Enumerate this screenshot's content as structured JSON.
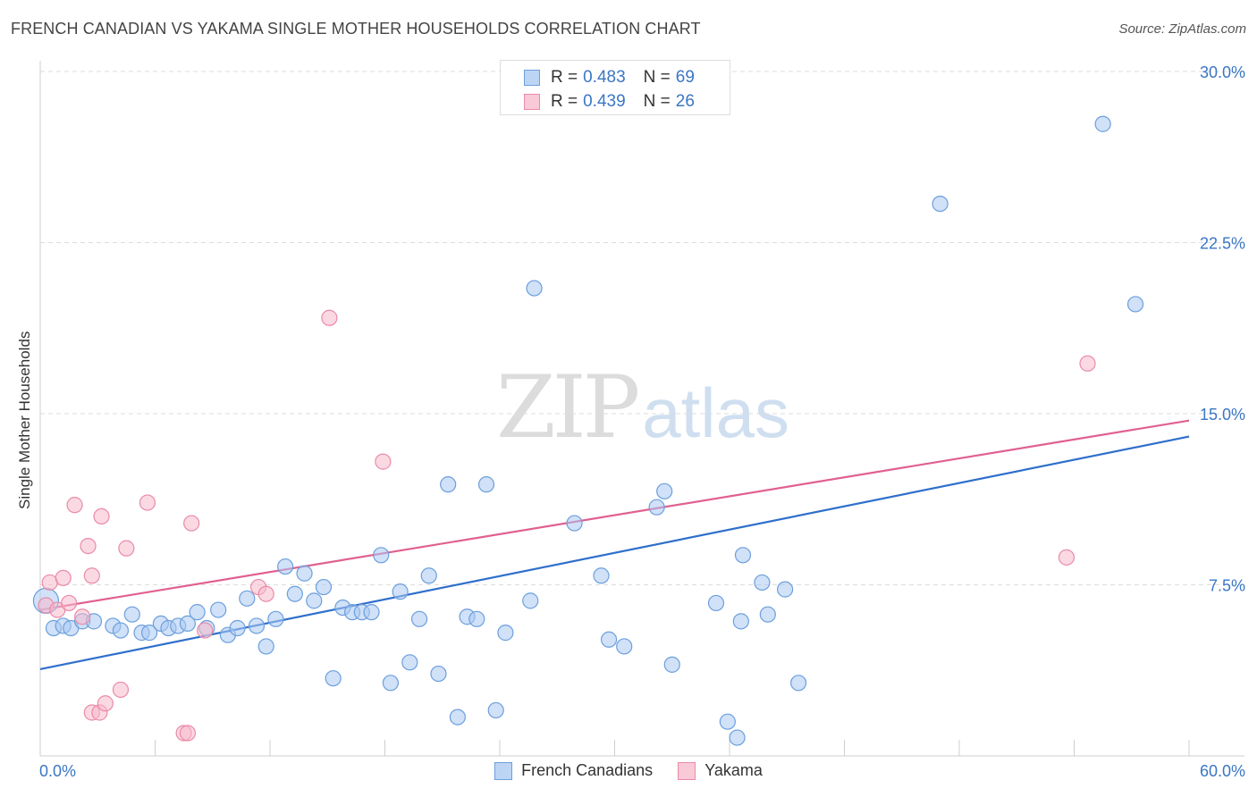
{
  "header": {
    "title": "FRENCH CANADIAN VS YAKAMA SINGLE MOTHER HOUSEHOLDS CORRELATION CHART",
    "source": "Source: ZipAtlas.com"
  },
  "watermark": {
    "zip": "ZIP",
    "atlas": "atlas"
  },
  "legend_top": {
    "rows": [
      {
        "r_label": "R =",
        "r_value": "0.483",
        "n_label": "N =",
        "n_value": "69"
      },
      {
        "r_label": "R =",
        "r_value": "0.439",
        "n_label": "N =",
        "n_value": "26"
      }
    ]
  },
  "legend_bottom": {
    "items": [
      {
        "label": "French Canadians"
      },
      {
        "label": "Yakama"
      }
    ]
  },
  "colors": {
    "blue_fill": "#a9c9f2",
    "blue_stroke": "#6c9fdc",
    "blue_line": "#2f6fcb",
    "pink_fill": "#f7b9cc",
    "pink_stroke": "#ea8aa9",
    "pink_line": "#e06090",
    "grid": "#dddddd",
    "axis_text": "#3a76c4"
  },
  "chart_data": {
    "type": "scatter",
    "title": "FRENCH CANADIAN VS YAKAMA SINGLE MOTHER HOUSEHOLDS CORRELATION CHART",
    "xlabel": "",
    "ylabel": "Single Mother Households",
    "xlim": [
      0,
      60
    ],
    "ylim": [
      0,
      30
    ],
    "x_tick_labels": [
      "0.0%",
      "60.0%"
    ],
    "y_ticks": [
      7.5,
      15,
      22.5,
      30
    ],
    "y_tick_labels": [
      "7.5%",
      "15.0%",
      "22.5%",
      "30.0%"
    ],
    "grid": true,
    "legend_position": "bottom",
    "series": [
      {
        "name": "French Canadians",
        "r": 0.483,
        "n": 69,
        "trend": {
          "x": [
            0,
            60
          ],
          "y": [
            3.8,
            14.0
          ]
        },
        "points": [
          [
            0.3,
            6.8
          ],
          [
            0.7,
            5.6
          ],
          [
            1.2,
            5.7
          ],
          [
            1.6,
            5.6
          ],
          [
            2.2,
            5.9
          ],
          [
            2.8,
            5.9
          ],
          [
            3.8,
            5.7
          ],
          [
            4.2,
            5.5
          ],
          [
            4.8,
            6.2
          ],
          [
            5.3,
            5.4
          ],
          [
            5.7,
            5.4
          ],
          [
            6.3,
            5.8
          ],
          [
            6.7,
            5.6
          ],
          [
            7.2,
            5.7
          ],
          [
            7.7,
            5.8
          ],
          [
            8.2,
            6.3
          ],
          [
            8.7,
            5.6
          ],
          [
            9.3,
            6.4
          ],
          [
            9.8,
            5.3
          ],
          [
            10.3,
            5.6
          ],
          [
            10.8,
            6.9
          ],
          [
            11.3,
            5.7
          ],
          [
            11.8,
            4.8
          ],
          [
            12.3,
            6.0
          ],
          [
            12.8,
            8.3
          ],
          [
            13.3,
            7.1
          ],
          [
            13.8,
            8.0
          ],
          [
            14.3,
            6.8
          ],
          [
            14.8,
            7.4
          ],
          [
            15.3,
            3.4
          ],
          [
            15.8,
            6.5
          ],
          [
            16.3,
            6.3
          ],
          [
            16.8,
            6.3
          ],
          [
            17.3,
            6.3
          ],
          [
            17.8,
            8.8
          ],
          [
            18.3,
            3.2
          ],
          [
            18.8,
            7.2
          ],
          [
            19.3,
            4.1
          ],
          [
            19.8,
            6.0
          ],
          [
            20.3,
            7.9
          ],
          [
            20.8,
            3.6
          ],
          [
            21.3,
            11.9
          ],
          [
            21.8,
            1.7
          ],
          [
            22.3,
            6.1
          ],
          [
            22.8,
            6.0
          ],
          [
            23.3,
            11.9
          ],
          [
            23.8,
            2.0
          ],
          [
            24.3,
            5.4
          ],
          [
            25.6,
            6.8
          ],
          [
            25.8,
            20.5
          ],
          [
            27.9,
            10.2
          ],
          [
            29.3,
            7.9
          ],
          [
            29.7,
            5.1
          ],
          [
            30.5,
            4.8
          ],
          [
            32.2,
            10.9
          ],
          [
            32.6,
            11.6
          ],
          [
            33.0,
            4.0
          ],
          [
            35.3,
            6.7
          ],
          [
            35.9,
            1.5
          ],
          [
            36.4,
            0.8
          ],
          [
            36.6,
            5.9
          ],
          [
            36.7,
            8.8
          ],
          [
            37.7,
            7.6
          ],
          [
            38.9,
            7.3
          ],
          [
            39.6,
            3.2
          ],
          [
            47.0,
            24.2
          ],
          [
            55.5,
            27.7
          ],
          [
            57.2,
            19.8
          ],
          [
            38.0,
            6.2
          ]
        ]
      },
      {
        "name": "Yakama",
        "r": 0.439,
        "n": 26,
        "trend": {
          "x": [
            0,
            60
          ],
          "y": [
            6.4,
            14.7
          ]
        },
        "points": [
          [
            0.3,
            6.6
          ],
          [
            0.5,
            7.6
          ],
          [
            0.9,
            6.4
          ],
          [
            1.2,
            7.8
          ],
          [
            1.5,
            6.7
          ],
          [
            1.8,
            11.0
          ],
          [
            2.2,
            6.1
          ],
          [
            2.5,
            9.2
          ],
          [
            2.7,
            7.9
          ],
          [
            2.7,
            1.9
          ],
          [
            3.1,
            1.9
          ],
          [
            3.2,
            10.5
          ],
          [
            3.4,
            2.3
          ],
          [
            4.2,
            2.9
          ],
          [
            4.5,
            9.1
          ],
          [
            5.6,
            11.1
          ],
          [
            7.5,
            1.0
          ],
          [
            7.7,
            1.0
          ],
          [
            7.9,
            10.2
          ],
          [
            8.6,
            5.5
          ],
          [
            11.4,
            7.4
          ],
          [
            11.8,
            7.1
          ],
          [
            15.1,
            19.2
          ],
          [
            17.9,
            12.9
          ],
          [
            53.6,
            8.7
          ],
          [
            54.7,
            17.2
          ]
        ]
      }
    ]
  }
}
